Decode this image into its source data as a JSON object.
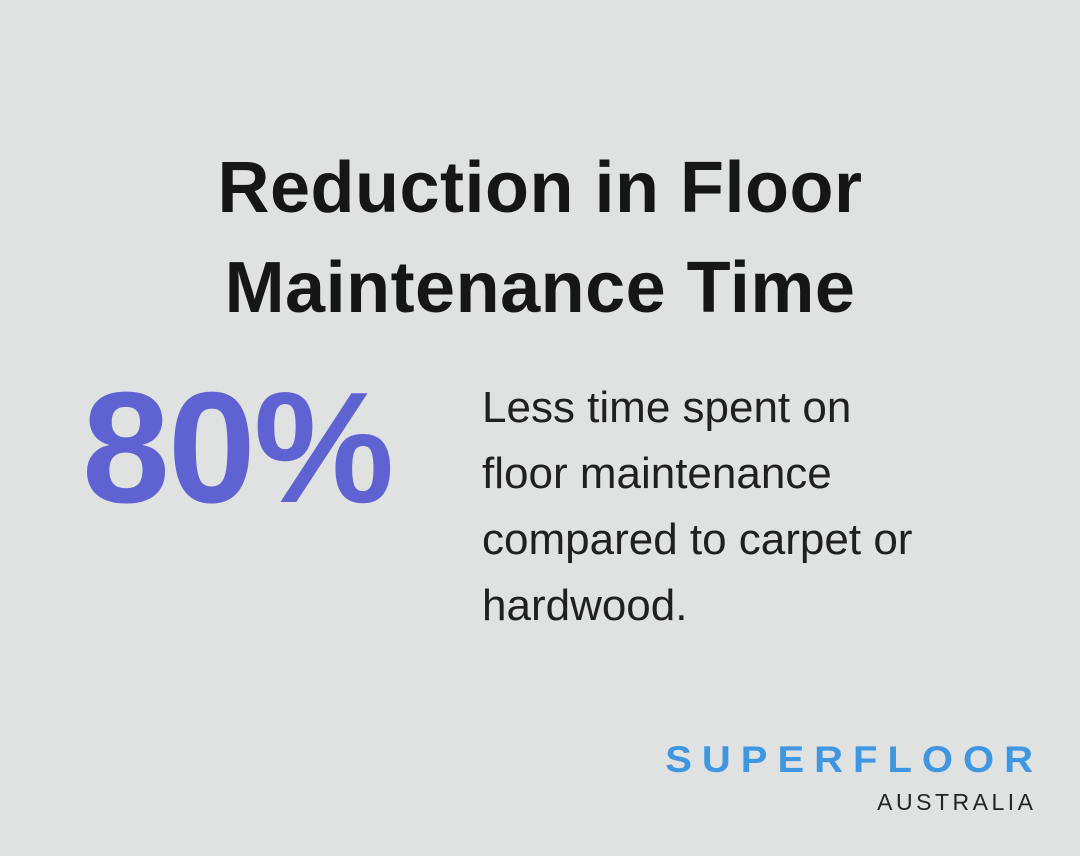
{
  "page": {
    "background_color": "#e0e1e1"
  },
  "title": {
    "text": "Reduction in Floor Maintenance Time",
    "lines": [
      "Reduction in Floor",
      "Maintenance Time"
    ],
    "color": "#161616"
  },
  "stat": {
    "value": "80%",
    "value_color": "#5e63d1",
    "description": "Less time spent on floor maintenance compared to carpet or hardwood.",
    "description_lines": [
      "Less time spent on",
      "floor maintenance",
      "compared to carpet or",
      "hardwood."
    ],
    "description_color": "#202020"
  },
  "logo": {
    "brand": "SUPERFLOOR",
    "region": "AUSTRALIA",
    "brand_color": "#3e97e0",
    "region_color": "#242424"
  }
}
